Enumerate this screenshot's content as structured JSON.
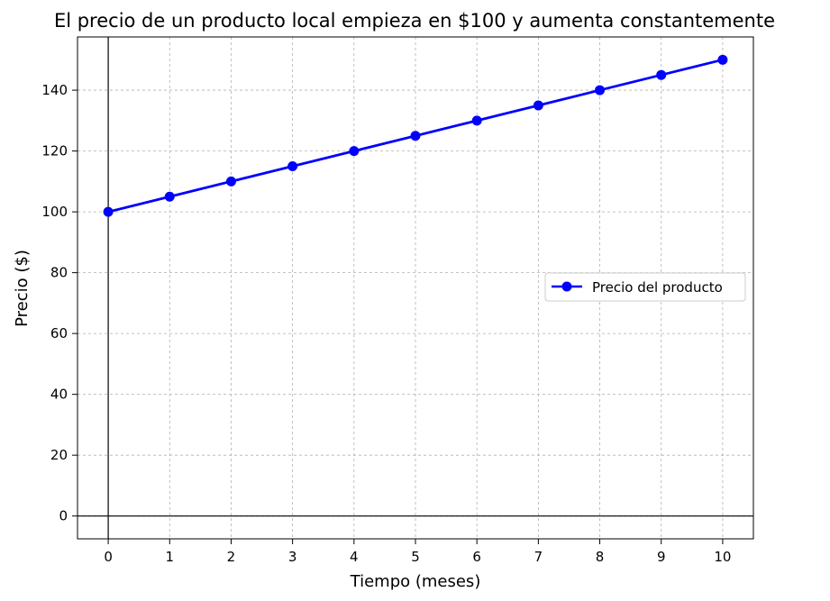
{
  "chart_data": {
    "type": "line",
    "title": "El precio de un producto local empieza en $100 y aumenta constantemente",
    "xlabel": "Tiempo (meses)",
    "ylabel": "Precio ($)",
    "x": [
      0,
      1,
      2,
      3,
      4,
      5,
      6,
      7,
      8,
      9,
      10
    ],
    "series": [
      {
        "name": "Precio del producto",
        "values": [
          100,
          105,
          110,
          115,
          120,
          125,
          130,
          135,
          140,
          145,
          150
        ],
        "color": "#0000ff",
        "marker": "circle"
      }
    ],
    "xlim": [
      -0.5,
      10.5
    ],
    "ylim": [
      -7.5,
      157.5
    ],
    "xticks": [
      "0",
      "1",
      "2",
      "3",
      "4",
      "5",
      "6",
      "7",
      "8",
      "9",
      "10"
    ],
    "yticks": [
      "0",
      "20",
      "40",
      "60",
      "80",
      "100",
      "120",
      "140"
    ],
    "ytick_values": [
      0,
      20,
      40,
      60,
      80,
      100,
      120,
      140
    ],
    "grid": true,
    "grid_style": "dashed",
    "reference_lines": {
      "x": 0,
      "y": 0
    },
    "legend_position": "center-right"
  }
}
